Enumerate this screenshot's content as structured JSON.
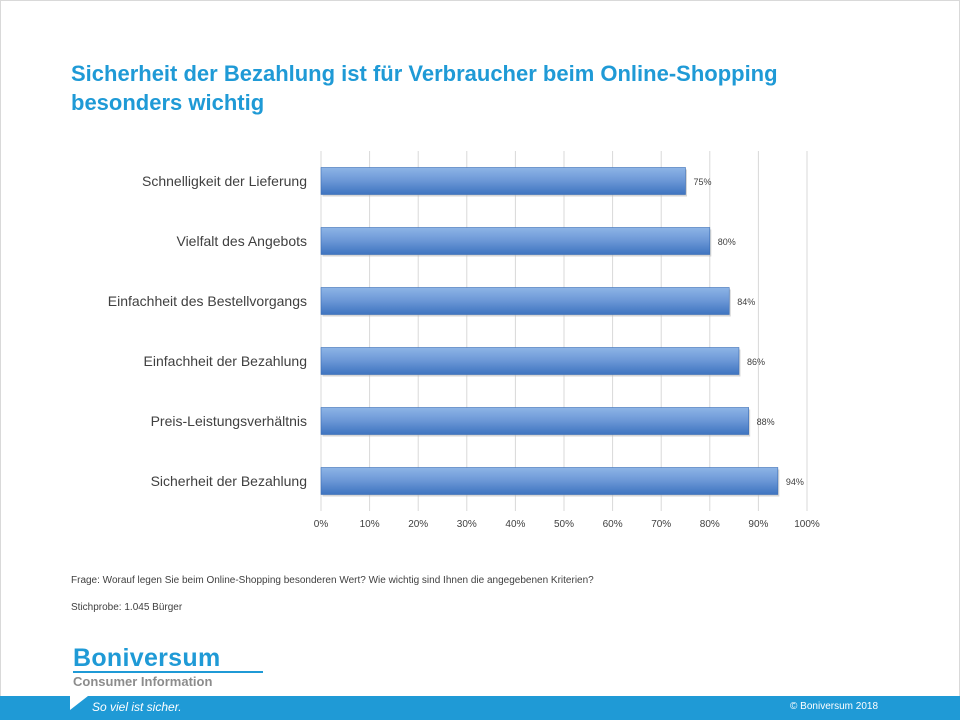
{
  "slide": {
    "title_line1": "Sicherheit der Bezahlung ist für Verbraucher beim Online-Shopping",
    "title_line2": "besonders wichtig",
    "question": "Frage: Worauf legen Sie beim Online-Shopping besonderen Wert? Wie wichtig sind Ihnen die angegebenen Kriterien?",
    "sample": "Stichprobe: 1.045 Bürger"
  },
  "logo": {
    "name": "Boniversum",
    "subtitle": "Consumer Information"
  },
  "footer": {
    "slogan": "So viel ist sicher.",
    "copyright": "© Boniversum 2018"
  },
  "colors": {
    "accent": "#1f9ad6",
    "bar_top": "#8db4e6",
    "bar_bottom": "#3e74c0"
  },
  "chart_data": {
    "type": "bar",
    "orientation": "horizontal",
    "categories": [
      "Schnelligkeit der Lieferung",
      "Vielfalt des Angebots",
      "Einfachheit des Bestellvorgangs",
      "Einfachheit der Bezahlung",
      "Preis-Leistungsverhältnis",
      "Sicherheit der Bezahlung"
    ],
    "values": [
      75,
      80,
      84,
      86,
      88,
      94
    ],
    "data_labels": [
      "75%",
      "80%",
      "84%",
      "86%",
      "88%",
      "94%"
    ],
    "xlim": [
      0,
      100
    ],
    "x_ticks": [
      "0%",
      "10%",
      "20%",
      "30%",
      "40%",
      "50%",
      "60%",
      "70%",
      "80%",
      "90%",
      "100%"
    ],
    "grid": true,
    "legend": "none"
  }
}
